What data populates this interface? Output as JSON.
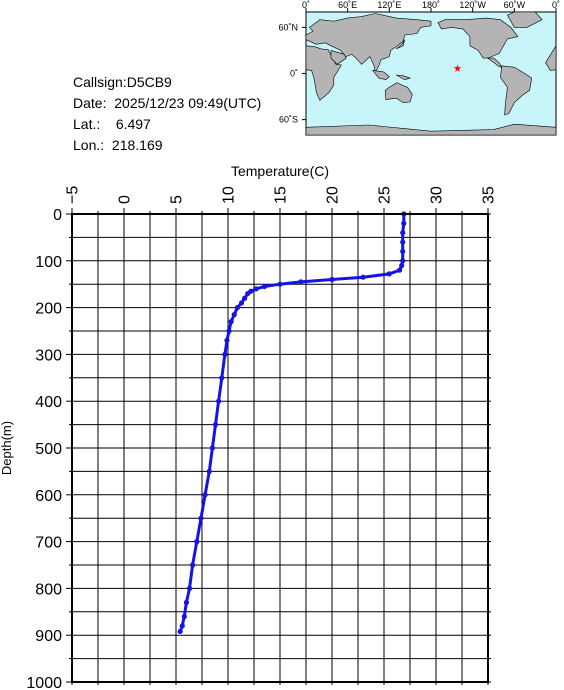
{
  "station": {
    "callsign_label": "Callsign:",
    "callsign": "D5CB9",
    "date_label": "Date:",
    "date": "2025/12/23 09:49(UTC)",
    "lat_label": "Lat.:",
    "lat": "6.497",
    "lon_label": "Lon.:",
    "lon": "218.169"
  },
  "map": {
    "top_ticks": [
      "0˚",
      "60˚E",
      "120˚E",
      "180˚",
      "120˚W",
      "60˚W",
      "0˚"
    ],
    "left_ticks": [
      "60˚N",
      "0˚",
      "60˚S"
    ],
    "marker_lon": 218.169,
    "marker_lat": 6.497,
    "ocean_color": "#c8f5fa",
    "land_color": "#b4b4b4",
    "marker_color": "#ff0000"
  },
  "chart_data": {
    "type": "line",
    "xlabel": "Temperature(C)",
    "ylabel": "Depth(m)",
    "xlim": [
      -5,
      35
    ],
    "ylim": [
      0,
      1000
    ],
    "y_inverted": true,
    "x_ticks": [
      -5,
      0,
      5,
      10,
      15,
      20,
      25,
      30,
      35
    ],
    "y_ticks": [
      0,
      100,
      200,
      300,
      400,
      500,
      600,
      700,
      800,
      900,
      1000
    ],
    "x_tick_labels": [
      "−5",
      "0",
      "5",
      "10",
      "15",
      "20",
      "25",
      "30",
      "35"
    ],
    "y_tick_labels": [
      "0",
      "100",
      "200",
      "300",
      "400",
      "500",
      "600",
      "700",
      "800",
      "900",
      "1000"
    ],
    "grid": true,
    "series_color": "#1414e6",
    "series": [
      {
        "x": [
          26.9,
          26.9,
          26.8,
          26.8,
          26.8,
          26.8,
          26.7,
          26.5,
          25.5,
          23.0,
          20.0,
          17.0,
          15.0,
          13.5,
          12.7,
          12.2,
          11.9,
          11.6,
          11.3,
          10.9,
          10.6,
          10.3,
          10.1,
          9.9,
          9.7,
          9.4,
          9.1,
          8.8,
          8.5,
          8.2,
          7.8,
          7.4,
          7.0,
          6.6,
          6.3,
          6.0,
          5.8,
          5.6,
          5.4
        ],
        "y": [
          0,
          20,
          40,
          60,
          80,
          100,
          110,
          120,
          128,
          135,
          140,
          145,
          150,
          155,
          160,
          165,
          170,
          180,
          190,
          200,
          215,
          230,
          250,
          270,
          300,
          350,
          400,
          450,
          500,
          550,
          600,
          650,
          700,
          750,
          800,
          830,
          860,
          880,
          892
        ]
      }
    ]
  }
}
